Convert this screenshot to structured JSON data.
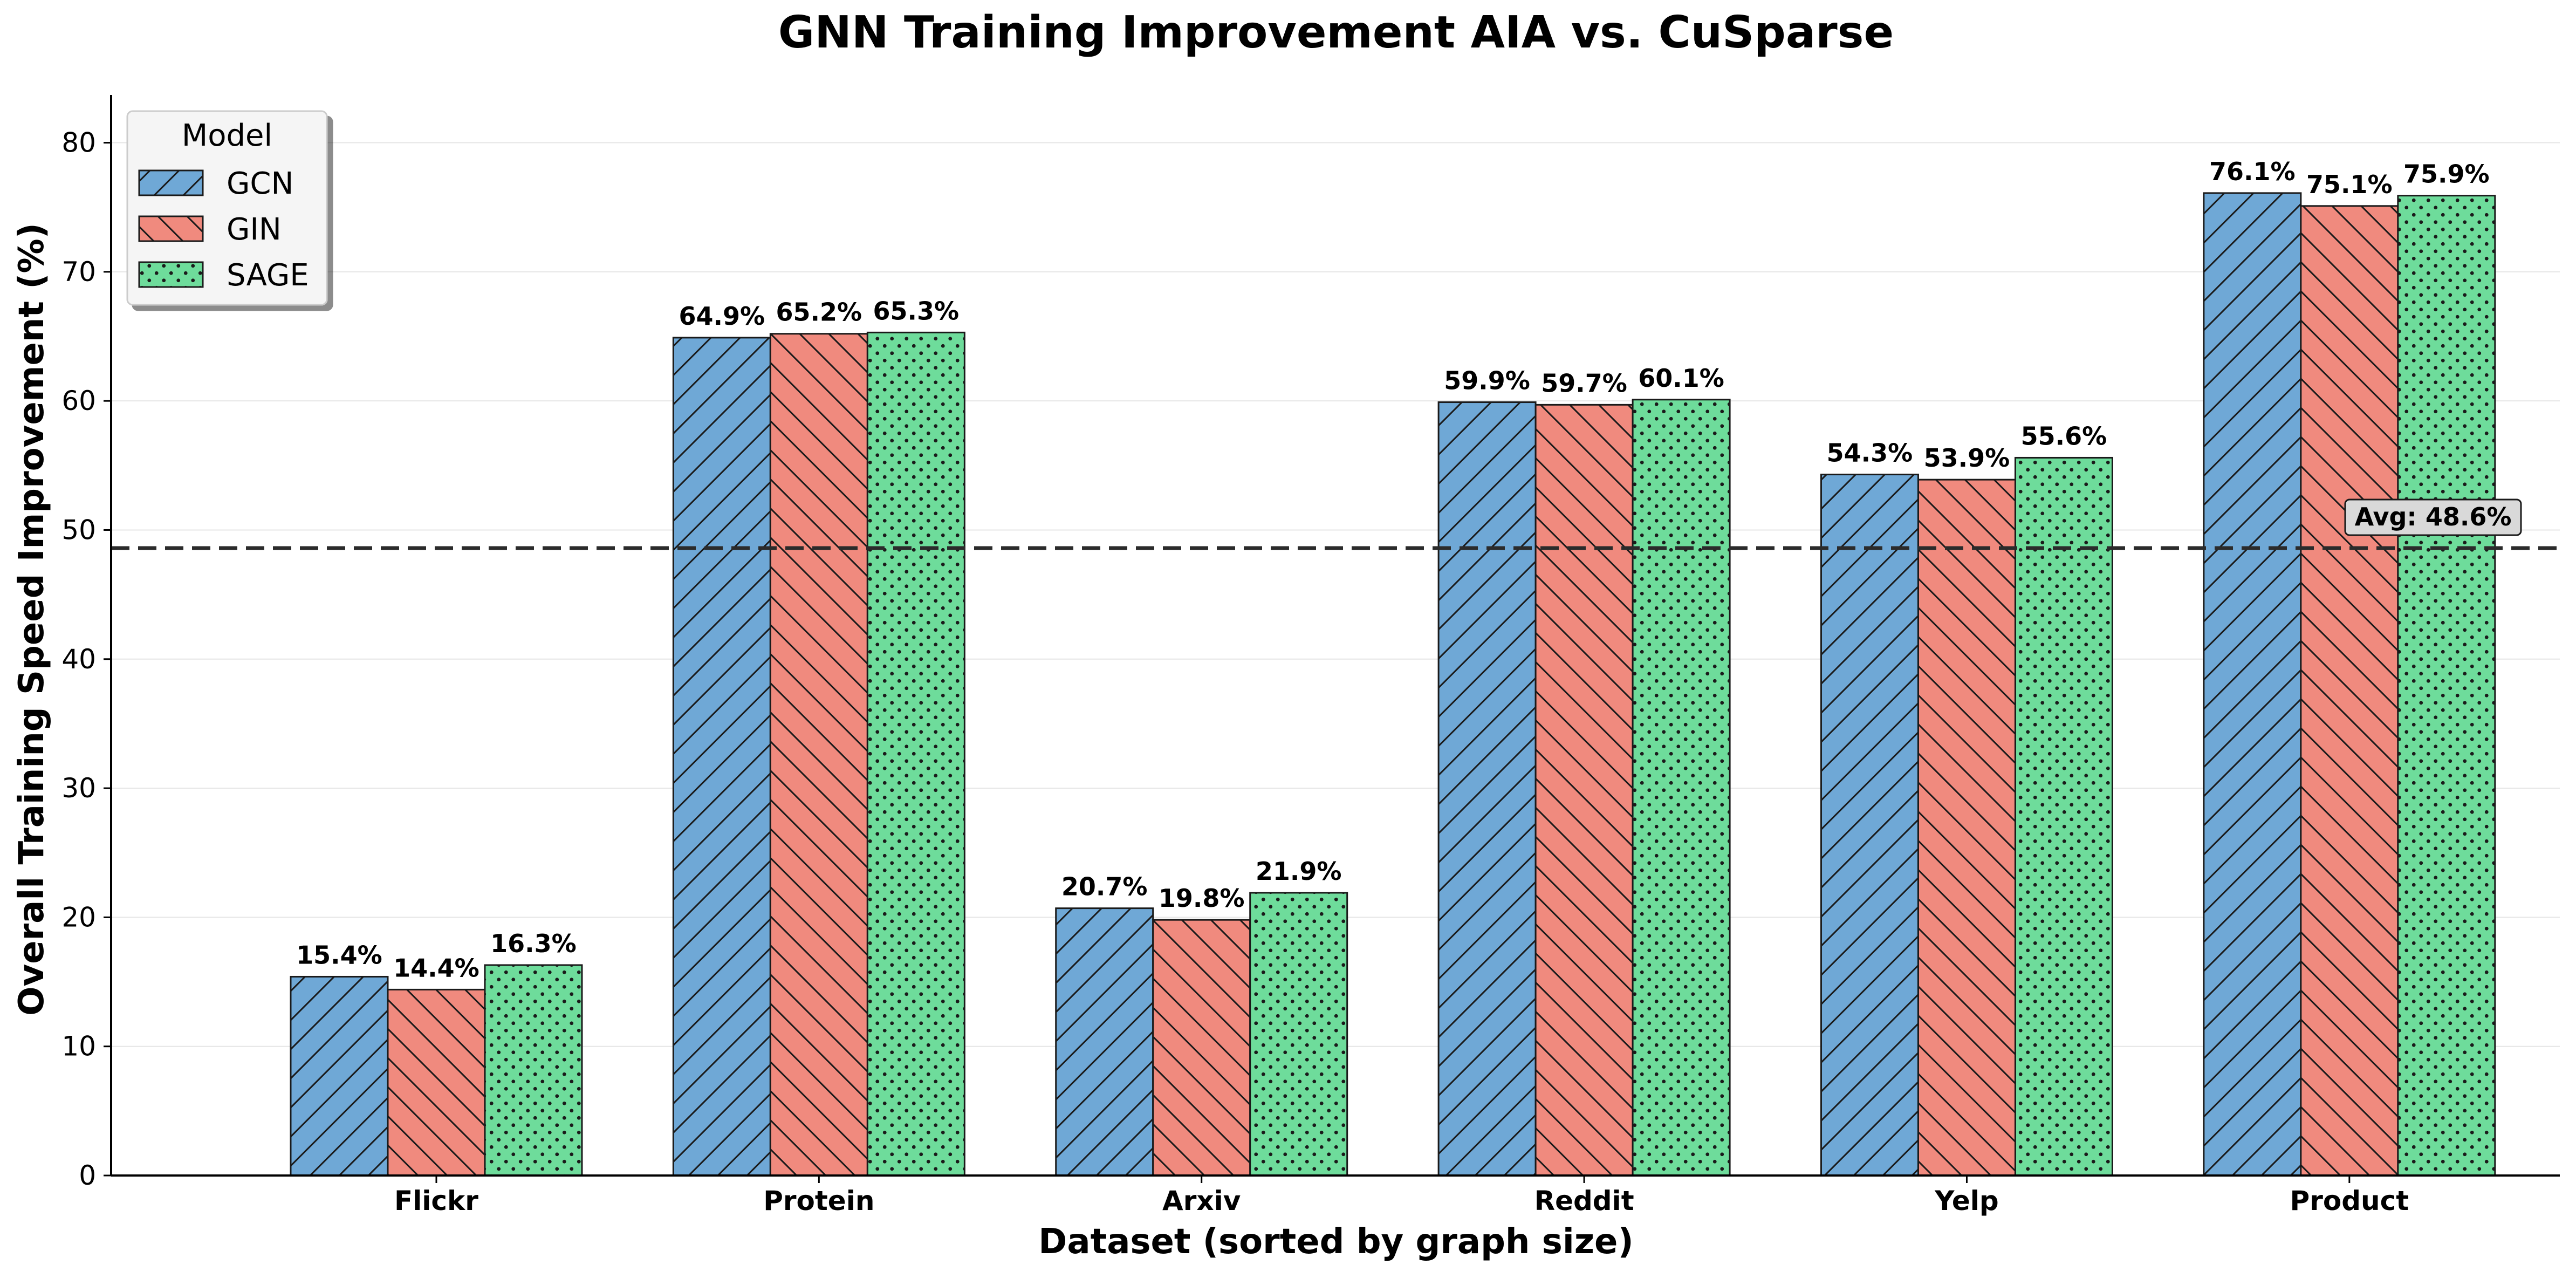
{
  "chart_data": {
    "type": "bar",
    "title": "GNN Training Improvement AIA vs. CuSparse",
    "xlabel": "Dataset (sorted by graph size)",
    "ylabel": "Overall Training Speed Improvement (%)",
    "ylim": [
      0,
      83.7
    ],
    "yticks": [
      0,
      10,
      20,
      30,
      40,
      50,
      60,
      70,
      80
    ],
    "grid": "horizontal",
    "legend_position": "top-left",
    "legend_title": "Model",
    "categories": [
      "Flickr",
      "Protein",
      "Arxiv",
      "Reddit",
      "Yelp",
      "Product"
    ],
    "series": [
      {
        "name": "GCN",
        "color": "#6fa8d6",
        "pattern": "forward-diagonal",
        "values": [
          15.4,
          64.9,
          20.7,
          59.9,
          54.3,
          76.1
        ],
        "labels": [
          "15.4%",
          "64.9%",
          "20.7%",
          "59.9%",
          "54.3%",
          "76.1%"
        ]
      },
      {
        "name": "GIN",
        "color": "#f08a7e",
        "pattern": "backward-diagonal",
        "values": [
          14.4,
          65.2,
          19.8,
          59.7,
          53.9,
          75.1
        ],
        "labels": [
          "14.4%",
          "65.2%",
          "19.8%",
          "59.7%",
          "53.9%",
          "75.1%"
        ]
      },
      {
        "name": "SAGE",
        "color": "#6edc9b",
        "pattern": "dots",
        "values": [
          16.3,
          65.3,
          21.9,
          60.1,
          55.6,
          75.9
        ],
        "labels": [
          "16.3%",
          "65.3%",
          "21.9%",
          "60.1%",
          "55.6%",
          "75.9%"
        ]
      }
    ],
    "average": {
      "value": 48.6,
      "label": "Avg: 48.6%"
    }
  }
}
